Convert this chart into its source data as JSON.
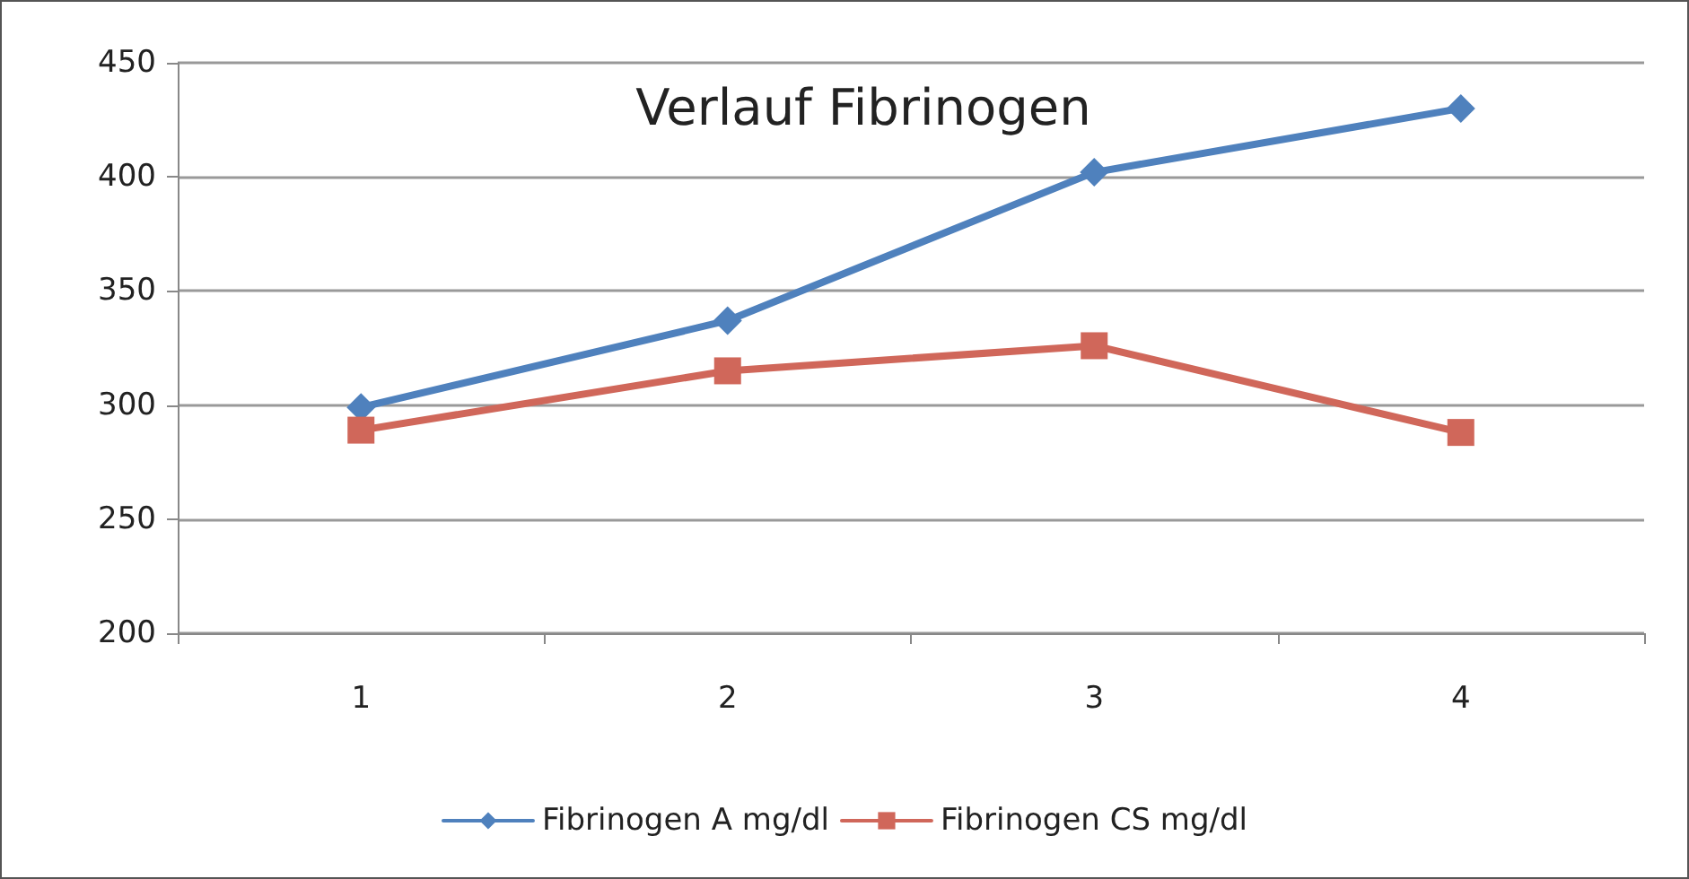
{
  "chart_data": {
    "type": "line",
    "title": "Verlauf Fibrinogen",
    "categories": [
      "1",
      "2",
      "3",
      "4"
    ],
    "series": [
      {
        "name": "Fibrinogen A mg/dl",
        "color": "#4f81bd",
        "marker": "diamond",
        "values": [
          299,
          337,
          402,
          430
        ]
      },
      {
        "name": "Fibrinogen CS mg/dl",
        "color": "#d0675a",
        "marker": "square",
        "values": [
          289,
          315,
          326,
          288
        ]
      }
    ],
    "ylim": [
      200,
      450
    ],
    "yticks": [
      200,
      250,
      300,
      350,
      400,
      450
    ],
    "grid": "y",
    "legend": "bottom",
    "line_style": "solid"
  }
}
